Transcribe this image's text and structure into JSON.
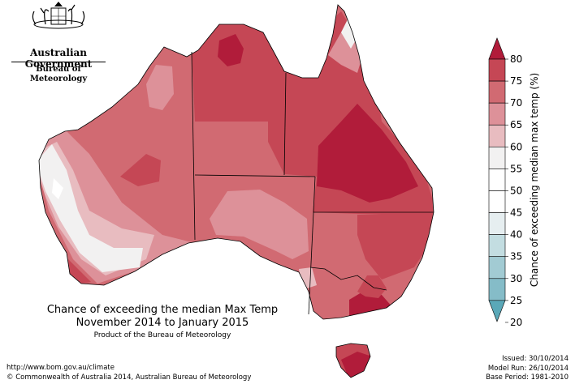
{
  "branding": {
    "government": "Australian Government",
    "agency": "Bureau of Meteorology"
  },
  "map": {
    "title_line1": "Chance of exceeding the median Max Temp",
    "title_line2": "November 2014 to January 2015",
    "subtitle": "Product of the Bureau of Meteorology",
    "fill_classes": [
      {
        "label": "80",
        "color": "#b11c3a"
      },
      {
        "label": "75",
        "color": "#c54755"
      },
      {
        "label": "70",
        "color": "#d16a72"
      },
      {
        "label": "65",
        "color": "#dd9199"
      },
      {
        "label": "60",
        "color": "#e8bcc0"
      },
      {
        "label": "55",
        "color": "#f2f1f1"
      },
      {
        "label": "50",
        "color": "#ffffff"
      }
    ]
  },
  "legend": {
    "title": "Chance of exceeding median max temp (%)",
    "ticks": [
      "80",
      "75",
      "70",
      "65",
      "60",
      "55",
      "50",
      "45",
      "40",
      "35",
      "30",
      "25",
      "20"
    ],
    "bins": [
      {
        "value": 77.5,
        "color": "#c54755"
      },
      {
        "value": 72.5,
        "color": "#d16a72"
      },
      {
        "value": 67.5,
        "color": "#dd9199"
      },
      {
        "value": 62.5,
        "color": "#e8bcc0"
      },
      {
        "value": 57.5,
        "color": "#f2f1f1"
      },
      {
        "value": 52.5,
        "color": "#ffffff"
      },
      {
        "value": 47.5,
        "color": "#ffffff"
      },
      {
        "value": 42.5,
        "color": "#e6eef0"
      },
      {
        "value": 37.5,
        "color": "#c3dde1"
      },
      {
        "value": 32.5,
        "color": "#a2cbd3"
      },
      {
        "value": 27.5,
        "color": "#85bcc8"
      }
    ],
    "top_arrow_color": "#b11c3a",
    "bottom_arrow_color": "#5aa8b8"
  },
  "footer": {
    "url": "http://www.bom.gov.au/climate",
    "copyright": "© Commonwealth of Australia 2014, Australian Bureau of Meteorology",
    "issued": "Issued: 30/10/2014",
    "model_run": "Model Run: 26/10/2014",
    "base_period": "Base Period: 1981-2010"
  }
}
